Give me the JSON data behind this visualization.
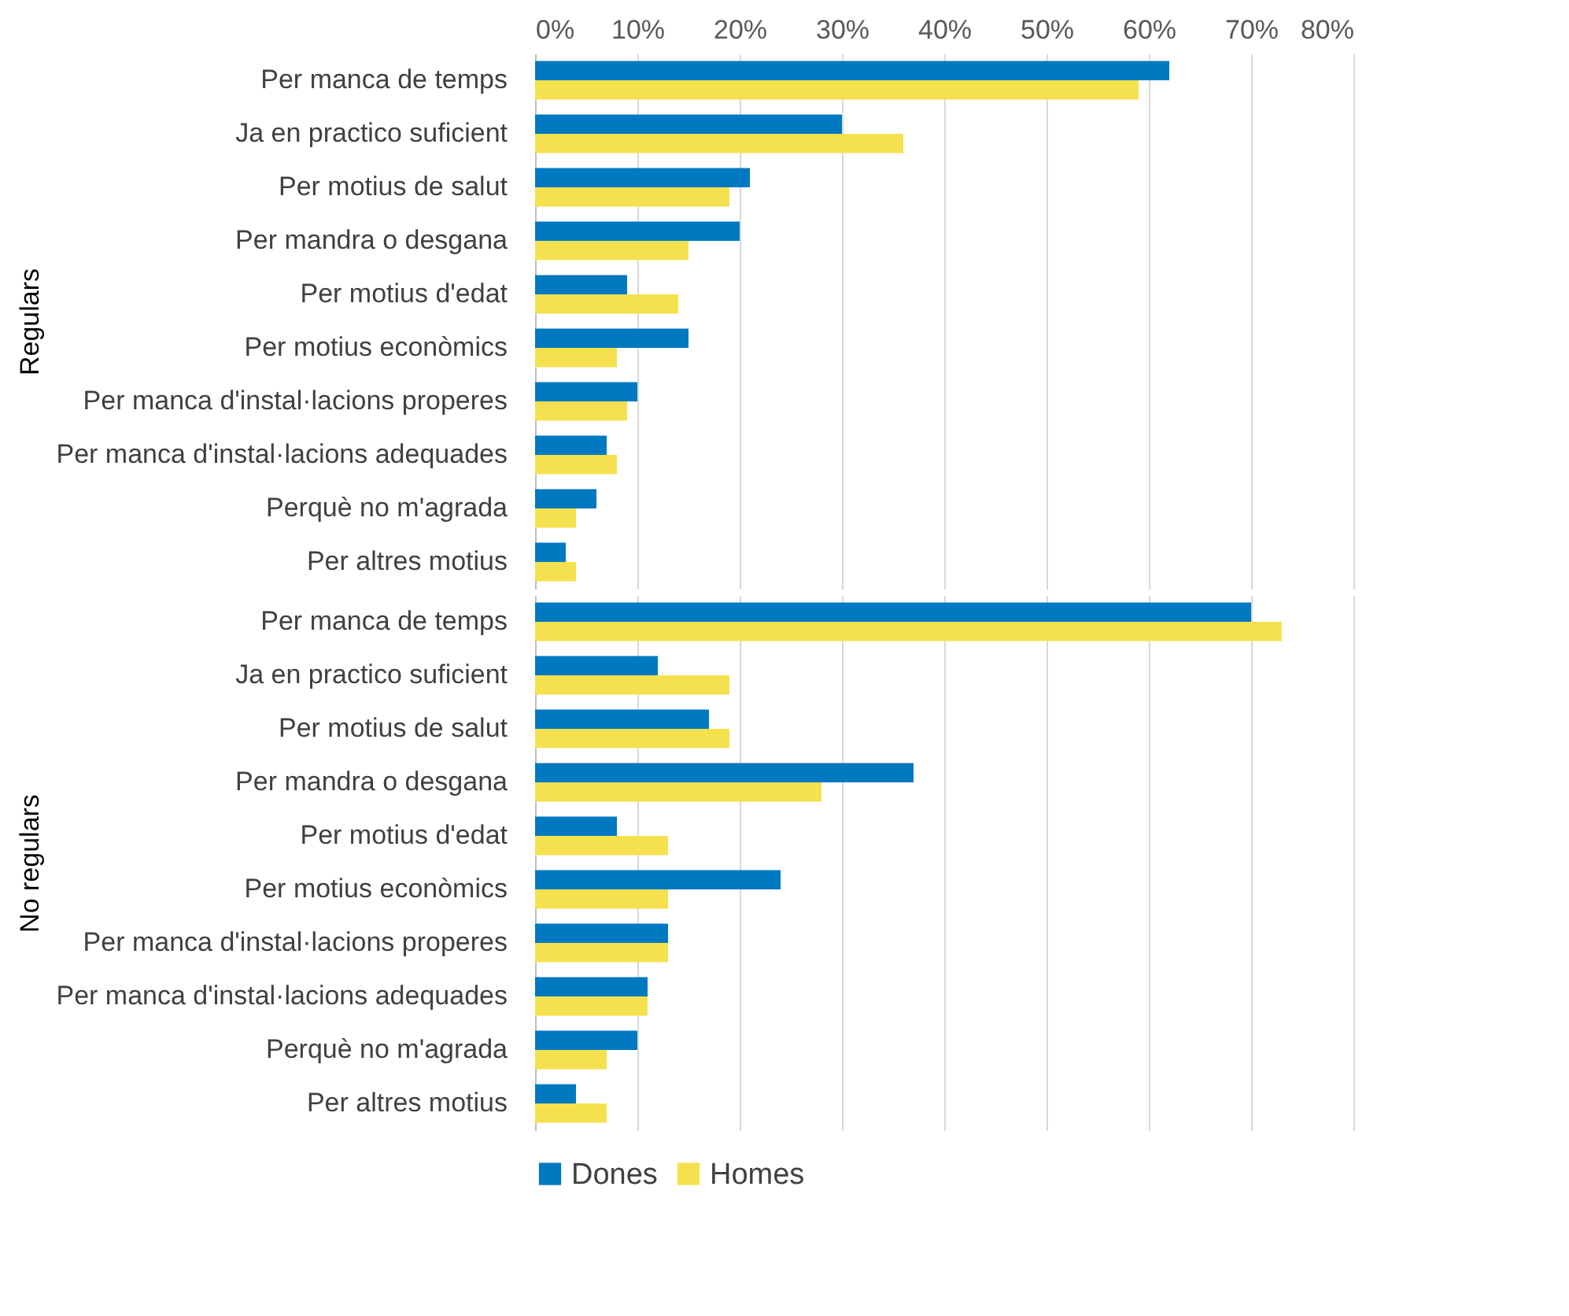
{
  "chart_data": [
    {
      "type": "bar",
      "orientation": "horizontal",
      "ylabel": "Regulars",
      "categories": [
        "Per manca de temps",
        "Ja en practico suficient",
        "Per motius de salut",
        "Per mandra o desgana",
        "Per motius d'edat",
        "Per motius econòmics",
        "Per manca d'instal·lacions properes",
        "Per manca d'instal·lacions adequades",
        "Perquè no m'agrada",
        "Per altres motius"
      ],
      "series": [
        {
          "name": "Dones",
          "color": "#0079c1",
          "values": [
            62,
            30,
            21,
            20,
            9,
            15,
            10,
            7,
            6,
            3
          ]
        },
        {
          "name": "Homes",
          "color": "#f5e14e",
          "values": [
            59,
            36,
            19,
            15,
            14,
            8,
            9,
            8,
            4,
            4
          ]
        }
      ],
      "xlim": [
        0,
        80
      ],
      "xticks": [
        {
          "value": 0,
          "label": "0%"
        },
        {
          "value": 10,
          "label": "10%"
        },
        {
          "value": 20,
          "label": "20%"
        },
        {
          "value": 30,
          "label": "30%"
        },
        {
          "value": 40,
          "label": "40%"
        },
        {
          "value": 50,
          "label": "50%"
        },
        {
          "value": 60,
          "label": "60%"
        },
        {
          "value": 70,
          "label": "70%"
        },
        {
          "value": 80,
          "label": "80%"
        }
      ],
      "grid": "x",
      "legend": "bottom"
    },
    {
      "type": "bar",
      "orientation": "horizontal",
      "ylabel": "No regulars",
      "categories": [
        "Per manca de temps",
        "Ja en practico suficient",
        "Per motius de salut",
        "Per mandra o desgana",
        "Per motius d'edat",
        "Per motius econòmics",
        "Per manca d'instal·lacions properes",
        "Per manca d'instal·lacions adequades",
        "Perquè no m'agrada",
        "Per altres motius"
      ],
      "series": [
        {
          "name": "Dones",
          "color": "#0079c1",
          "values": [
            70,
            12,
            17,
            37,
            8,
            24,
            13,
            11,
            10,
            4
          ]
        },
        {
          "name": "Homes",
          "color": "#f5e14e",
          "values": [
            73,
            19,
            19,
            28,
            13,
            13,
            13,
            11,
            7,
            7
          ]
        }
      ],
      "xlim": [
        0,
        80
      ],
      "xticks": [
        {
          "value": 0,
          "label": null
        },
        {
          "value": 10,
          "label": null
        },
        {
          "value": 20,
          "label": null
        },
        {
          "value": 30,
          "label": null
        },
        {
          "value": 40,
          "label": null
        },
        {
          "value": 50,
          "label": null
        },
        {
          "value": 60,
          "label": null
        },
        {
          "value": 70,
          "label": null
        },
        {
          "value": 80,
          "label": null
        }
      ],
      "tick_labels": "y",
      "grid": "x",
      "legend": "bottom"
    }
  ]
}
